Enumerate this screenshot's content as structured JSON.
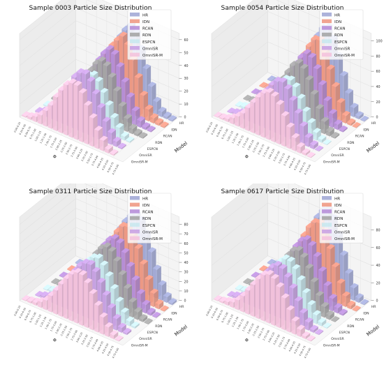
{
  "figure": {
    "models": [
      "HR",
      "IDN",
      "RCAN",
      "RDN",
      "ESPCN",
      "OmniSR",
      "OmniSR-M"
    ],
    "legend_labels": [
      "HR",
      "IDN",
      "RCAN",
      "RDN",
      "ESPCN",
      "OmniSR",
      "OmniSR-M"
    ],
    "model_axis_label": "Model",
    "phi_axis_label": "Φ",
    "colors": {
      "HR": "#a3aad6",
      "IDN": "#f09a85",
      "RCAN": "#b78fd8",
      "RDN": "#a6a6a6",
      "ESPCN": "#c9e8ee",
      "OmniSR": "#c9a2e3",
      "OmniSR-M": "#f4c3dd"
    }
  },
  "chart_data": [
    {
      "type": "bar",
      "title": "Sample 0003 Particle Size Distribution",
      "xlabel": "Φ",
      "ylabel": "Model",
      "zticks": [
        0,
        10,
        20,
        30,
        40,
        50,
        60
      ],
      "zlim": [
        0,
        65
      ],
      "bins": [
        "0.00-0.25",
        "0.25-0.50",
        "0.50-0.75",
        "0.75-1.00",
        "1.00-1.25",
        "1.25-1.50",
        "1.50-1.75",
        "1.75-2.00",
        "2.00-2.25",
        "2.25-2.50",
        "2.50-2.75",
        "2.75-3.00",
        "3.00-3.25",
        "3.25-3.50",
        "3.50-3.75",
        "3.75-4.00",
        "4.00-4.25",
        "4.25-4.50",
        "4.50-4.75",
        "4.75-5.00"
      ],
      "series": [
        {
          "name": "HR",
          "values": [
            0,
            1,
            2,
            5,
            10,
            16,
            24,
            32,
            40,
            48,
            55,
            60,
            56,
            45,
            32,
            20,
            10,
            4,
            2,
            1
          ]
        },
        {
          "name": "IDN",
          "values": [
            0,
            1,
            2,
            4,
            8,
            14,
            22,
            30,
            38,
            46,
            52,
            57,
            52,
            42,
            30,
            18,
            9,
            4,
            2,
            1
          ]
        },
        {
          "name": "RCAN",
          "values": [
            0,
            1,
            2,
            4,
            9,
            15,
            22,
            30,
            38,
            45,
            50,
            48,
            40,
            30,
            20,
            11,
            5,
            2,
            1,
            0
          ]
        },
        {
          "name": "RDN",
          "values": [
            0,
            1,
            2,
            4,
            8,
            13,
            20,
            28,
            35,
            42,
            46,
            44,
            37,
            28,
            18,
            10,
            4,
            2,
            1,
            0
          ]
        },
        {
          "name": "ESPCN",
          "values": [
            0,
            1,
            3,
            5,
            9,
            14,
            21,
            28,
            34,
            38,
            40,
            37,
            30,
            22,
            14,
            8,
            3,
            1,
            0,
            0
          ]
        },
        {
          "name": "OmniSR",
          "values": [
            0,
            1,
            3,
            5,
            10,
            16,
            24,
            32,
            40,
            45,
            46,
            42,
            34,
            25,
            16,
            9,
            4,
            1,
            0,
            0
          ]
        },
        {
          "name": "OmniSR-M",
          "values": [
            1,
            2,
            4,
            7,
            12,
            18,
            26,
            33,
            39,
            42,
            42,
            38,
            30,
            22,
            14,
            8,
            3,
            1,
            0,
            0
          ]
        }
      ]
    },
    {
      "type": "bar",
      "title": "Sample 0054 Particle Size Distribution",
      "xlabel": "Φ",
      "ylabel": "Model",
      "zticks": [
        0,
        20,
        40,
        60,
        80,
        100
      ],
      "zlim": [
        0,
        110
      ],
      "bins": [
        "0.00-0.25",
        "0.25-0.50",
        "0.50-0.75",
        "0.75-1.00",
        "1.00-1.25",
        "1.25-1.50",
        "1.50-1.75",
        "1.75-2.00",
        "2.00-2.25",
        "2.25-2.50",
        "2.50-2.75",
        "2.75-3.00",
        "3.00-3.25",
        "3.25-3.50",
        "3.50-3.75",
        "3.75-4.00",
        "4.00-4.25",
        "4.25-4.50",
        "4.50-4.75",
        "4.75-5.00"
      ],
      "series": [
        {
          "name": "HR",
          "values": [
            0,
            1,
            2,
            5,
            10,
            18,
            28,
            40,
            55,
            70,
            85,
            98,
            102,
            90,
            70,
            48,
            28,
            12,
            4,
            1
          ]
        },
        {
          "name": "IDN",
          "values": [
            0,
            1,
            2,
            5,
            9,
            16,
            26,
            38,
            52,
            66,
            80,
            92,
            94,
            82,
            62,
            42,
            24,
            10,
            3,
            1
          ]
        },
        {
          "name": "RCAN",
          "values": [
            0,
            1,
            2,
            4,
            9,
            16,
            25,
            36,
            50,
            62,
            74,
            82,
            80,
            68,
            50,
            32,
            18,
            7,
            2,
            0
          ]
        },
        {
          "name": "RDN",
          "values": [
            0,
            1,
            2,
            4,
            8,
            15,
            24,
            35,
            48,
            60,
            72,
            78,
            74,
            62,
            46,
            30,
            16,
            6,
            2,
            0
          ]
        },
        {
          "name": "ESPCN",
          "values": [
            0,
            1,
            3,
            6,
            10,
            16,
            24,
            34,
            44,
            54,
            62,
            64,
            58,
            46,
            32,
            20,
            10,
            4,
            1,
            0
          ]
        },
        {
          "name": "OmniSR",
          "values": [
            0,
            1,
            3,
            6,
            11,
            18,
            27,
            38,
            50,
            60,
            68,
            70,
            64,
            52,
            38,
            24,
            12,
            5,
            1,
            0
          ]
        },
        {
          "name": "OmniSR-M",
          "values": [
            1,
            2,
            4,
            8,
            13,
            20,
            30,
            40,
            50,
            58,
            62,
            60,
            52,
            40,
            28,
            17,
            8,
            3,
            1,
            0
          ]
        }
      ]
    },
    {
      "type": "bar",
      "title": "Sample 0311 Particle Size Distribution",
      "xlabel": "Φ",
      "ylabel": "Model",
      "zticks": [
        0,
        10,
        20,
        30,
        40,
        50,
        60,
        70,
        80
      ],
      "zlim": [
        0,
        88
      ],
      "bins": [
        "0.00-0.25",
        "0.25-0.50",
        "0.50-0.75",
        "0.75-1.00",
        "1.00-1.25",
        "1.25-1.50",
        "1.50-1.75",
        "1.75-2.00",
        "2.00-2.25",
        "2.25-2.50",
        "2.50-2.75",
        "2.75-3.00",
        "3.00-3.25",
        "3.25-3.50",
        "3.50-3.75",
        "3.75-4.00",
        "4.00-4.25",
        "4.25-4.50",
        "4.50-4.75",
        "4.75-5.00"
      ],
      "series": [
        {
          "name": "HR",
          "values": [
            0,
            1,
            2,
            4,
            8,
            14,
            22,
            32,
            44,
            56,
            66,
            74,
            78,
            74,
            62,
            46,
            30,
            16,
            6,
            2
          ]
        },
        {
          "name": "IDN",
          "values": [
            0,
            1,
            2,
            4,
            7,
            13,
            21,
            30,
            41,
            52,
            62,
            70,
            72,
            66,
            54,
            40,
            26,
            14,
            5,
            1
          ]
        },
        {
          "name": "RCAN",
          "values": [
            0,
            1,
            2,
            4,
            8,
            14,
            22,
            32,
            42,
            52,
            60,
            64,
            62,
            54,
            42,
            30,
            18,
            9,
            3,
            1
          ]
        },
        {
          "name": "RDN",
          "values": [
            0,
            1,
            2,
            4,
            8,
            14,
            22,
            31,
            41,
            50,
            58,
            62,
            60,
            52,
            40,
            28,
            16,
            8,
            3,
            1
          ]
        },
        {
          "name": "ESPCN",
          "values": [
            0,
            1,
            2,
            5,
            9,
            15,
            23,
            32,
            41,
            49,
            55,
            57,
            52,
            43,
            32,
            21,
            12,
            5,
            2,
            0
          ]
        },
        {
          "name": "OmniSR",
          "values": [
            0,
            1,
            3,
            5,
            10,
            16,
            25,
            34,
            43,
            51,
            56,
            57,
            52,
            43,
            32,
            21,
            12,
            5,
            2,
            0
          ]
        },
        {
          "name": "OmniSR-M",
          "values": [
            1,
            2,
            3,
            6,
            10,
            17,
            25,
            34,
            42,
            49,
            53,
            53,
            47,
            38,
            28,
            18,
            10,
            4,
            1,
            0
          ]
        }
      ]
    },
    {
      "type": "bar",
      "title": "Sample 0617 Particle Size Distribution",
      "xlabel": "Φ",
      "ylabel": "Model",
      "zticks": [
        0,
        20,
        40,
        60,
        80
      ],
      "zlim": [
        0,
        95
      ],
      "bins": [
        "0.00-0.25",
        "0.25-0.50",
        "0.50-0.75",
        "0.75-1.00",
        "1.00-1.25",
        "1.25-1.50",
        "1.50-1.75",
        "1.75-2.00",
        "2.00-2.25",
        "2.25-2.50",
        "2.50-2.75",
        "2.75-3.00",
        "3.00-3.25",
        "3.25-3.50",
        "3.50-3.75",
        "3.75-4.00",
        "4.00-4.25",
        "4.25-4.50",
        "4.50-4.75",
        "4.75-5.00"
      ],
      "series": [
        {
          "name": "HR",
          "values": [
            0,
            1,
            2,
            4,
            8,
            14,
            24,
            36,
            50,
            64,
            76,
            86,
            90,
            82,
            66,
            46,
            28,
            14,
            5,
            1
          ]
        },
        {
          "name": "IDN",
          "values": [
            0,
            1,
            2,
            4,
            8,
            14,
            23,
            34,
            47,
            60,
            72,
            80,
            82,
            74,
            58,
            40,
            24,
            12,
            4,
            1
          ]
        },
        {
          "name": "RCAN",
          "values": [
            0,
            1,
            2,
            4,
            8,
            14,
            22,
            32,
            44,
            55,
            64,
            68,
            64,
            54,
            40,
            26,
            14,
            6,
            2,
            0
          ]
        },
        {
          "name": "RDN",
          "values": [
            0,
            1,
            2,
            4,
            8,
            13,
            21,
            31,
            42,
            52,
            60,
            63,
            58,
            48,
            35,
            22,
            12,
            5,
            1,
            0
          ]
        },
        {
          "name": "ESPCN",
          "values": [
            0,
            1,
            2,
            5,
            9,
            15,
            23,
            33,
            43,
            52,
            58,
            58,
            52,
            42,
            30,
            19,
            10,
            4,
            1,
            0
          ]
        },
        {
          "name": "OmniSR",
          "values": [
            0,
            1,
            3,
            5,
            10,
            16,
            25,
            35,
            45,
            53,
            58,
            57,
            50,
            40,
            28,
            17,
            9,
            3,
            1,
            0
          ]
        },
        {
          "name": "OmniSR-M",
          "values": [
            1,
            2,
            4,
            6,
            11,
            18,
            27,
            36,
            45,
            52,
            55,
            53,
            46,
            36,
            25,
            15,
            8,
            3,
            1,
            0
          ]
        }
      ]
    }
  ]
}
